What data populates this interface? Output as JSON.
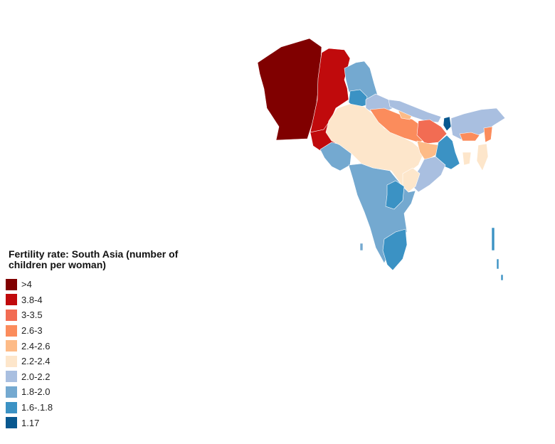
{
  "legend": {
    "title": "Fertility rate: South Asia (number of children per woman)",
    "items": [
      {
        "label": ">4",
        "color": "#800000"
      },
      {
        "label": "3.8-4",
        "color": "#c00a0c"
      },
      {
        "label": "3-3.5",
        "color": "#f26c53"
      },
      {
        "label": "2.6-3",
        "color": "#fb8c5c"
      },
      {
        "label": "2.4-2.6",
        "color": "#fdbb87"
      },
      {
        "label": "2.2-2.4",
        "color": "#fde6cb"
      },
      {
        "label": "2.0-2.2",
        "color": "#a9bfe0"
      },
      {
        "label": "1.8-2.0",
        "color": "#74a9d0"
      },
      {
        "label": "1.6-.1.8",
        "color": "#3b92c4"
      },
      {
        "label": "1.17",
        "color": "#08588f"
      }
    ]
  },
  "regions": [
    {
      "name": "afghanistan",
      "class": ">4"
    },
    {
      "name": "pakistan-north",
      "class": "3.8-4"
    },
    {
      "name": "pakistan-sindh",
      "class": "3.8-4"
    },
    {
      "name": "kashmir",
      "class": "1.8-2.0"
    },
    {
      "name": "punjab-india",
      "class": "1.6-.1.8"
    },
    {
      "name": "himachal-uttarakhand",
      "class": "2.0-2.2"
    },
    {
      "name": "gujarat",
      "class": "1.8-2.0"
    },
    {
      "name": "rajasthan-mp",
      "class": "2.2-2.4"
    },
    {
      "name": "uttar-pradesh",
      "class": "2.6-3"
    },
    {
      "name": "uttar-pradesh-east",
      "class": "2.4-2.6"
    },
    {
      "name": "nepal",
      "class": "2.0-2.2"
    },
    {
      "name": "bihar",
      "class": "3-3.5"
    },
    {
      "name": "jharkhand",
      "class": "2.4-2.6"
    },
    {
      "name": "west-bengal",
      "class": "1.6-.1.8"
    },
    {
      "name": "bhutan-sikkim",
      "class": "1.17"
    },
    {
      "name": "northeast-india",
      "class": "2.0-2.2"
    },
    {
      "name": "meghalaya",
      "class": "2.6-3"
    },
    {
      "name": "mizoram-tripura",
      "class": "2.2-2.4"
    },
    {
      "name": "odisha",
      "class": "2.0-2.2"
    },
    {
      "name": "chhattisgarh-east",
      "class": "2.2-2.4"
    },
    {
      "name": "maharashtra-karnataka",
      "class": "1.8-2.0"
    },
    {
      "name": "telangana",
      "class": "1.6-.1.8"
    },
    {
      "name": "tamil-nadu",
      "class": "1.6-.1.8"
    },
    {
      "name": "andaman-islands",
      "class": "1.6-.1.8"
    },
    {
      "name": "sri-lanka",
      "class": "1.8-2.0"
    }
  ]
}
